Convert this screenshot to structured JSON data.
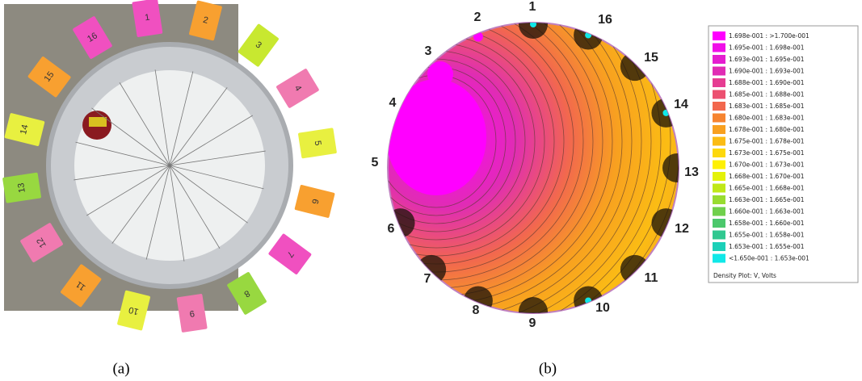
{
  "panel_a": {
    "caption": "(a)",
    "tags": [
      "1",
      "2",
      "3",
      "4",
      "5",
      "6",
      "7",
      "8",
      "9",
      "10",
      "11",
      "12",
      "13",
      "14",
      "15",
      "16"
    ]
  },
  "panel_b": {
    "caption": "(b)",
    "electrodes": [
      "1",
      "2",
      "3",
      "4",
      "5",
      "6",
      "7",
      "8",
      "9",
      "10",
      "11",
      "12",
      "13",
      "14",
      "15",
      "16"
    ],
    "legend": {
      "entries": [
        {
          "label": "1.698e-001 : >1.700e-001",
          "color": "#ff00ff"
        },
        {
          "label": "1.695e-001 : 1.698e-001",
          "color": "#f00ee8"
        },
        {
          "label": "1.693e-001 : 1.695e-001",
          "color": "#e51dd0"
        },
        {
          "label": "1.690e-001 : 1.693e-001",
          "color": "#e02cb4"
        },
        {
          "label": "1.688e-001 : 1.690e-001",
          "color": "#e63c92"
        },
        {
          "label": "1.685e-001 : 1.688e-001",
          "color": "#ec5070"
        },
        {
          "label": "1.683e-001 : 1.685e-001",
          "color": "#f2684e"
        },
        {
          "label": "1.680e-001 : 1.683e-001",
          "color": "#f68430"
        },
        {
          "label": "1.678e-001 : 1.680e-001",
          "color": "#f8a020"
        },
        {
          "label": "1.675e-001 : 1.678e-001",
          "color": "#fbbc14"
        },
        {
          "label": "1.673e-001 : 1.675e-001",
          "color": "#fdd80c"
        },
        {
          "label": "1.670e-001 : 1.673e-001",
          "color": "#fef004"
        },
        {
          "label": "1.668e-001 : 1.670e-001",
          "color": "#e4f20a"
        },
        {
          "label": "1.665e-001 : 1.668e-001",
          "color": "#c0e818"
        },
        {
          "label": "1.663e-001 : 1.665e-001",
          "color": "#98dc30"
        },
        {
          "label": "1.660e-001 : 1.663e-001",
          "color": "#70d04c"
        },
        {
          "label": "1.658e-001 : 1.660e-001",
          "color": "#4cc86c"
        },
        {
          "label": "1.655e-001 : 1.658e-001",
          "color": "#30c890"
        },
        {
          "label": "1.653e-001 : 1.655e-001",
          "color": "#1cd0b8"
        },
        {
          "label": "<1.650e-001 : 1.653e-001",
          "color": "#10e8e8"
        }
      ],
      "title": "Density Plot: V, Volts"
    }
  }
}
